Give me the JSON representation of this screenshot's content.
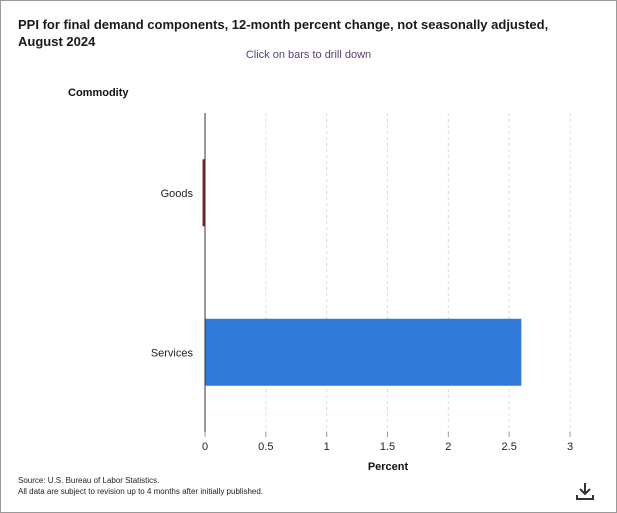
{
  "title": "PPI for final demand components, 12-month percent change, not seasonally adjusted, August 2024",
  "subtitle": "Click on bars to drill down",
  "footer": {
    "source": "Source: U.S. Bureau of Labor Statistics.",
    "note": "All data are subject to revision up to 4 months after initially published."
  },
  "download_icon": "download-icon",
  "chart_data": {
    "type": "bar",
    "orientation": "horizontal",
    "categories": [
      "Goods",
      "Services"
    ],
    "values": [
      -0.02,
      2.6
    ],
    "bar_colors": [
      "#8b1a1a",
      "#2f7ad8"
    ],
    "xlabel": "Percent",
    "ylabel": "Commodity",
    "xlim": [
      0,
      3
    ],
    "xticks": [
      "0",
      "0.5",
      "1",
      "1.5",
      "2",
      "2.5",
      "3"
    ],
    "grid": "vertical dashed",
    "legend": "none"
  }
}
